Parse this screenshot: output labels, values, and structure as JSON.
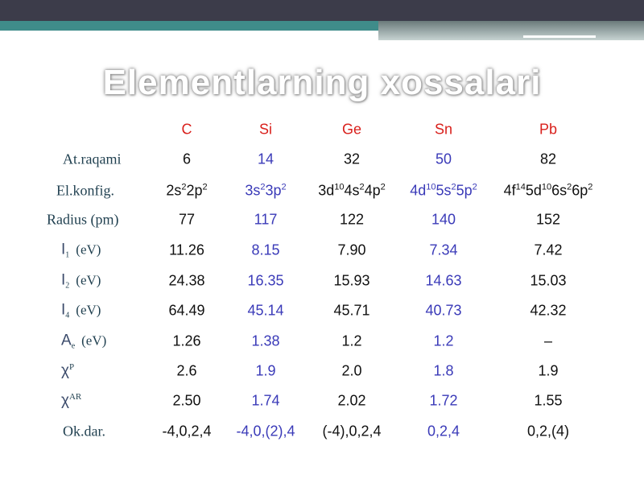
{
  "header": {
    "title": "Elementlarning xossalari"
  },
  "table": {
    "columns": [
      "C",
      "Si",
      "Ge",
      "Sn",
      "Pb"
    ],
    "rows": [
      {
        "label": {
          "main": "At.raqami"
        },
        "cells": [
          "6",
          "14",
          "32",
          "50",
          "82"
        ]
      },
      {
        "label": {
          "main": "El.konfig."
        },
        "cells": [
          [
            "2s",
            "2",
            "2p",
            "2"
          ],
          [
            "3s",
            "2",
            "3p",
            "2"
          ],
          [
            "3d",
            "10",
            "4s",
            "2",
            "4p",
            "2"
          ],
          [
            "4d",
            "10",
            "5s",
            "2",
            "5p",
            "2"
          ],
          [
            "4f",
            "14",
            "5d",
            "10",
            "6s",
            "2",
            "6p",
            "2"
          ]
        ]
      },
      {
        "label": {
          "main": "Radius (pm)"
        },
        "cells": [
          "77",
          "117",
          "122",
          "140",
          "152"
        ]
      },
      {
        "label": {
          "main": "I",
          "sub": "1",
          "unit": "(eV)"
        },
        "cells": [
          "11.26",
          "8.15",
          "7.90",
          "7.34",
          "7.42"
        ]
      },
      {
        "label": {
          "main": "I",
          "sub": "2",
          "unit": "(eV)"
        },
        "cells": [
          "24.38",
          "16.35",
          "15.93",
          "14.63",
          "15.03"
        ]
      },
      {
        "label": {
          "main": "I",
          "sub": "4",
          "unit": "(eV)"
        },
        "cells": [
          "64.49",
          "45.14",
          "45.71",
          "40.73",
          "42.32"
        ]
      },
      {
        "label": {
          "main": "A",
          "sub": "e",
          "unit": "(eV)"
        },
        "cells": [
          "1.26",
          "1.38",
          "1.2",
          "1.2",
          "–"
        ]
      },
      {
        "label": {
          "main": "χ",
          "sup": "P"
        },
        "cells": [
          "2.6",
          "1.9",
          "2.0",
          "1.8",
          "1.9"
        ]
      },
      {
        "label": {
          "main": "χ",
          "sup": "AR"
        },
        "cells": [
          "2.50",
          "1.74",
          "2.02",
          "1.72",
          "1.55"
        ]
      },
      {
        "label": {
          "main": "Ok.dar."
        },
        "cells": [
          "-4,0,2,4",
          "-4,0,(2),4",
          "(-4),0,2,4",
          "0,2,4",
          "0,2,(4)"
        ]
      }
    ]
  }
}
